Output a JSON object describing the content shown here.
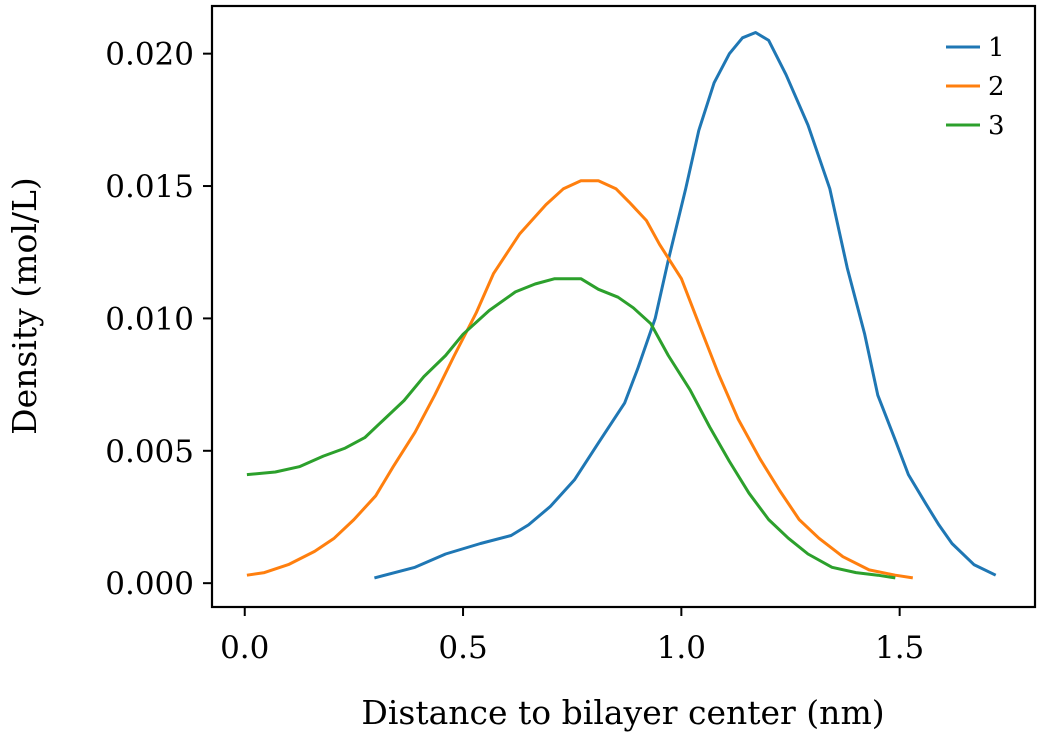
{
  "chart_data": {
    "type": "line",
    "title": "",
    "xlabel": "Distance to bilayer center (nm)",
    "ylabel": "Density (mol/L)",
    "xlim": [
      -0.075,
      1.81
    ],
    "ylim": [
      -0.0009,
      0.0218
    ],
    "xticks": [
      0.0,
      0.5,
      1.0,
      1.5
    ],
    "xtick_labels": [
      "0.0",
      "0.5",
      "1.0",
      "1.5"
    ],
    "yticks": [
      0.0,
      0.005,
      0.01,
      0.015,
      0.02
    ],
    "ytick_labels": [
      "0.000",
      "0.005",
      "0.010",
      "0.015",
      "0.020"
    ],
    "grid": false,
    "legend_position": "top-right",
    "series": [
      {
        "name": "1",
        "color": "#1f77b4",
        "x": [
          0.297,
          0.39,
          0.46,
          0.54,
          0.61,
          0.65,
          0.7,
          0.755,
          0.81,
          0.87,
          0.9,
          0.94,
          0.97,
          1.01,
          1.04,
          1.075,
          1.11,
          1.14,
          1.17,
          1.2,
          1.24,
          1.29,
          1.34,
          1.38,
          1.42,
          1.45,
          1.49,
          1.52,
          1.56,
          1.59,
          1.62,
          1.67,
          1.72
        ],
        "y": [
          0.0002,
          0.0006,
          0.0011,
          0.0015,
          0.0018,
          0.0022,
          0.0029,
          0.0039,
          0.0053,
          0.0068,
          0.0081,
          0.01,
          0.0122,
          0.0149,
          0.0171,
          0.0189,
          0.02,
          0.0206,
          0.0208,
          0.0205,
          0.0192,
          0.0173,
          0.0149,
          0.0119,
          0.0094,
          0.0071,
          0.0054,
          0.0041,
          0.003,
          0.0022,
          0.0015,
          0.0007,
          0.0003
        ]
      },
      {
        "name": "2",
        "color": "#ff7f0e",
        "x": [
          0.005,
          0.045,
          0.1,
          0.16,
          0.205,
          0.25,
          0.3,
          0.34,
          0.39,
          0.435,
          0.48,
          0.53,
          0.57,
          0.63,
          0.69,
          0.73,
          0.77,
          0.81,
          0.85,
          0.88,
          0.92,
          0.95,
          1.0,
          1.04,
          1.085,
          1.13,
          1.18,
          1.225,
          1.27,
          1.315,
          1.37,
          1.43,
          1.49,
          1.53
        ],
        "y": [
          0.0003,
          0.0004,
          0.0007,
          0.0012,
          0.0017,
          0.0024,
          0.0033,
          0.0044,
          0.0057,
          0.0071,
          0.0086,
          0.0102,
          0.0117,
          0.0132,
          0.0143,
          0.0149,
          0.0152,
          0.0152,
          0.0149,
          0.0144,
          0.0137,
          0.0128,
          0.0115,
          0.0098,
          0.0079,
          0.0062,
          0.0047,
          0.0035,
          0.0024,
          0.0017,
          0.001,
          0.0005,
          0.0003,
          0.0002
        ]
      },
      {
        "name": "3",
        "color": "#2ca02c",
        "x": [
          0.005,
          0.07,
          0.125,
          0.18,
          0.23,
          0.275,
          0.32,
          0.365,
          0.41,
          0.46,
          0.5,
          0.56,
          0.62,
          0.665,
          0.71,
          0.745,
          0.77,
          0.81,
          0.855,
          0.89,
          0.93,
          0.97,
          1.02,
          1.065,
          1.11,
          1.155,
          1.2,
          1.245,
          1.29,
          1.345,
          1.4,
          1.45,
          1.49
        ],
        "y": [
          0.0041,
          0.0042,
          0.0044,
          0.0048,
          0.0051,
          0.0055,
          0.0062,
          0.0069,
          0.0078,
          0.0086,
          0.0094,
          0.0103,
          0.011,
          0.0113,
          0.0115,
          0.0115,
          0.0115,
          0.0111,
          0.0108,
          0.0104,
          0.0098,
          0.0086,
          0.0073,
          0.0059,
          0.0046,
          0.0034,
          0.0024,
          0.0017,
          0.0011,
          0.0006,
          0.0004,
          0.0003,
          0.0002
        ]
      }
    ]
  }
}
